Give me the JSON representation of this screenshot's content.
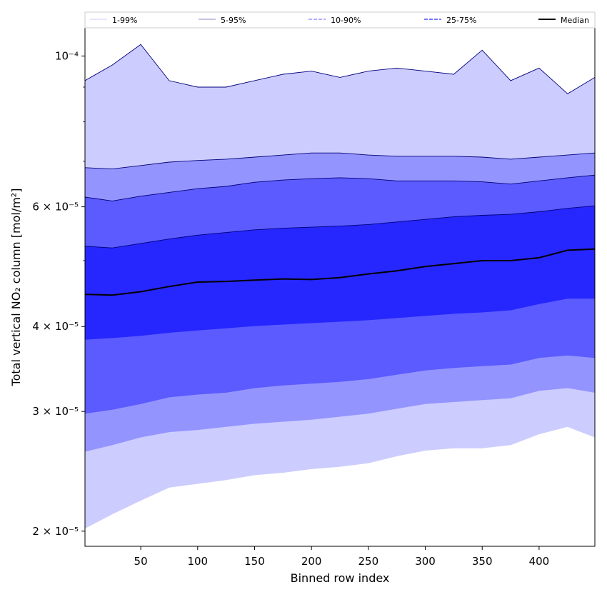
{
  "chart_data": {
    "type": "area",
    "title": "",
    "xlabel": "Binned row index",
    "ylabel": "Total vertical NO₂ column [mol/m²]",
    "xlim": [
      1,
      449
    ],
    "ylim": [
      1.9e-05,
      0.00011
    ],
    "yscale": "log",
    "x_ticks": [
      50,
      100,
      150,
      200,
      250,
      300,
      350,
      400
    ],
    "y_ticks": [
      {
        "value": 2e-05,
        "label": "2 × 10⁻⁵"
      },
      {
        "value": 3e-05,
        "label": "3 × 10⁻⁵"
      },
      {
        "value": 4e-05,
        "label": "4 × 10⁻⁵"
      },
      {
        "value": 6e-05,
        "label": "6 × 10⁻⁵"
      },
      {
        "value": 0.0001,
        "label": "10⁻⁴"
      }
    ],
    "legend": {
      "placement": "top",
      "entries": [
        "1-99%",
        "5-95%",
        "10-90%",
        "25-75%",
        "Median"
      ]
    },
    "colors": {
      "band_1_99": "#ccccff",
      "band_5_95": "#9494ff",
      "band_10_90": "#5b5bff",
      "band_25_75": "#2626ff",
      "band_edge": "#00007a",
      "median": "#000000"
    },
    "x": [
      1,
      25,
      50,
      75,
      100,
      125,
      150,
      175,
      200,
      225,
      250,
      275,
      300,
      325,
      350,
      375,
      400,
      425,
      449
    ],
    "series": [
      {
        "name": "1-99%",
        "lower": [
          2.02e-05,
          2.12e-05,
          2.22e-05,
          2.32e-05,
          2.35e-05,
          2.38e-05,
          2.42e-05,
          2.44e-05,
          2.47e-05,
          2.49e-05,
          2.52e-05,
          2.58e-05,
          2.63e-05,
          2.65e-05,
          2.65e-05,
          2.68e-05,
          2.78e-05,
          2.85e-05,
          2.75e-05
        ],
        "upper": [
          9.2e-05,
          9.7e-05,
          0.000104,
          9.2e-05,
          9e-05,
          9e-05,
          9.2e-05,
          9.4e-05,
          9.5e-05,
          9.3e-05,
          9.5e-05,
          9.6e-05,
          9.5e-05,
          9.4e-05,
          0.000102,
          9.2e-05,
          9.6e-05,
          8.8e-05,
          9.3e-05
        ]
      },
      {
        "name": "5-95%",
        "lower": [
          2.62e-05,
          2.68e-05,
          2.75e-05,
          2.8e-05,
          2.82e-05,
          2.85e-05,
          2.88e-05,
          2.9e-05,
          2.92e-05,
          2.95e-05,
          2.98e-05,
          3.03e-05,
          3.08e-05,
          3.1e-05,
          3.12e-05,
          3.14e-05,
          3.22e-05,
          3.25e-05,
          3.2e-05
        ],
        "upper": [
          6.85e-05,
          6.82e-05,
          6.9e-05,
          6.98e-05,
          7.02e-05,
          7.05e-05,
          7.1e-05,
          7.15e-05,
          7.2e-05,
          7.2e-05,
          7.15e-05,
          7.12e-05,
          7.12e-05,
          7.12e-05,
          7.1e-05,
          7.05e-05,
          7.1e-05,
          7.15e-05,
          7.2e-05
        ]
      },
      {
        "name": "10-90%",
        "lower": [
          2.98e-05,
          3.02e-05,
          3.08e-05,
          3.15e-05,
          3.18e-05,
          3.2e-05,
          3.25e-05,
          3.28e-05,
          3.3e-05,
          3.32e-05,
          3.35e-05,
          3.4e-05,
          3.45e-05,
          3.48e-05,
          3.5e-05,
          3.52e-05,
          3.6e-05,
          3.63e-05,
          3.6e-05
        ],
        "upper": [
          6.2e-05,
          6.12e-05,
          6.22e-05,
          6.3e-05,
          6.38e-05,
          6.43e-05,
          6.52e-05,
          6.57e-05,
          6.6e-05,
          6.62e-05,
          6.6e-05,
          6.55e-05,
          6.55e-05,
          6.55e-05,
          6.53e-05,
          6.48e-05,
          6.55e-05,
          6.62e-05,
          6.68e-05
        ]
      },
      {
        "name": "25-75%",
        "lower": [
          3.83e-05,
          3.85e-05,
          3.88e-05,
          3.92e-05,
          3.95e-05,
          3.98e-05,
          4.01e-05,
          4.03e-05,
          4.05e-05,
          4.07e-05,
          4.09e-05,
          4.12e-05,
          4.15e-05,
          4.18e-05,
          4.2e-05,
          4.23e-05,
          4.32e-05,
          4.4e-05,
          4.4e-05
        ],
        "upper": [
          5.25e-05,
          5.22e-05,
          5.3e-05,
          5.38e-05,
          5.45e-05,
          5.5e-05,
          5.55e-05,
          5.58e-05,
          5.6e-05,
          5.62e-05,
          5.65e-05,
          5.7e-05,
          5.75e-05,
          5.8e-05,
          5.83e-05,
          5.85e-05,
          5.9e-05,
          5.97e-05,
          6.02e-05
        ]
      },
      {
        "name": "Median",
        "values": [
          4.46e-05,
          4.45e-05,
          4.5e-05,
          4.58e-05,
          4.65e-05,
          4.66e-05,
          4.68e-05,
          4.7e-05,
          4.69e-05,
          4.72e-05,
          4.78e-05,
          4.83e-05,
          4.9e-05,
          4.95e-05,
          5e-05,
          5e-05,
          5.05e-05,
          5.18e-05,
          5.2e-05
        ]
      }
    ]
  }
}
